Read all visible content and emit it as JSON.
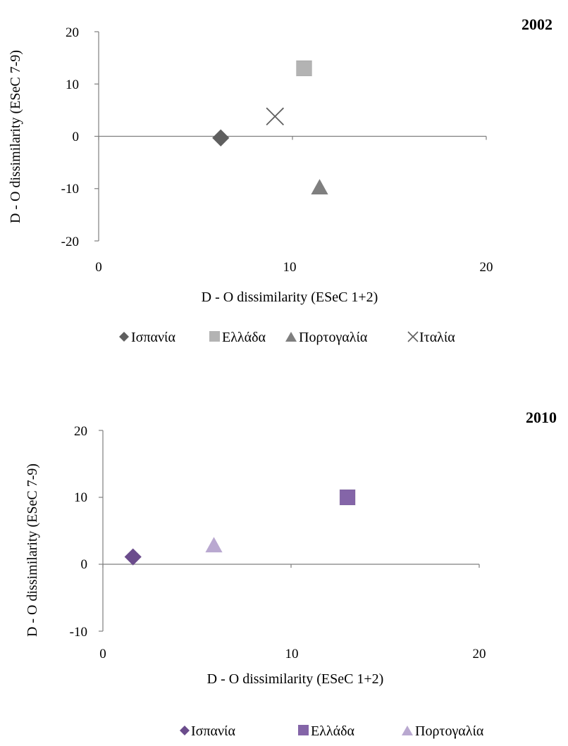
{
  "chart_data": [
    {
      "type": "scatter",
      "title": "2002",
      "xlabel": "D - O dissimilarity (ESeC 1+2)",
      "ylabel": "D - O dissimilarity (ESeC 7-9)",
      "xlim": [
        0,
        20
      ],
      "ylim": [
        -20,
        20
      ],
      "x_ticks": [
        "0",
        "10",
        "20"
      ],
      "y_ticks": [
        "20",
        "10",
        "0",
        "-10",
        "-20"
      ],
      "grid": false,
      "legend_position": "bottom",
      "series": [
        {
          "name": "Ισπανία",
          "marker": "diamond",
          "color": "#5f5f5f",
          "x": [
            6.3
          ],
          "y": [
            -0.3
          ]
        },
        {
          "name": "Ελλάδα",
          "marker": "square",
          "color": "#b3b3b3",
          "x": [
            10.6
          ],
          "y": [
            13.0
          ]
        },
        {
          "name": "Πορτογαλία",
          "marker": "triangle",
          "color": "#7f7f7f",
          "x": [
            11.4
          ],
          "y": [
            -9.8
          ]
        },
        {
          "name": "Ιταλία",
          "marker": "x",
          "color": "#5f5f5f",
          "x": [
            9.1
          ],
          "y": [
            3.8
          ]
        }
      ]
    },
    {
      "type": "scatter",
      "title": "2010",
      "xlabel": "D - O dissimilarity (ESeC 1+2)",
      "ylabel": "D - O dissimilarity (ESeC 7-9)",
      "xlim": [
        0,
        20
      ],
      "ylim": [
        -10,
        20
      ],
      "x_ticks": [
        "0",
        "10",
        "20"
      ],
      "y_ticks": [
        "20",
        "10",
        "0",
        "-10"
      ],
      "grid": false,
      "legend_position": "bottom",
      "series": [
        {
          "name": "Ισπανία",
          "marker": "diamond",
          "color": "#6b4c8c",
          "x": [
            1.6
          ],
          "y": [
            1.1
          ]
        },
        {
          "name": "Ελλάδα",
          "marker": "square",
          "color": "#8465a8",
          "x": [
            13.0
          ],
          "y": [
            10.0
          ]
        },
        {
          "name": "Πορτογαλία",
          "marker": "triangle",
          "color": "#b9a8d0",
          "x": [
            5.9
          ],
          "y": [
            2.8
          ]
        }
      ]
    }
  ]
}
